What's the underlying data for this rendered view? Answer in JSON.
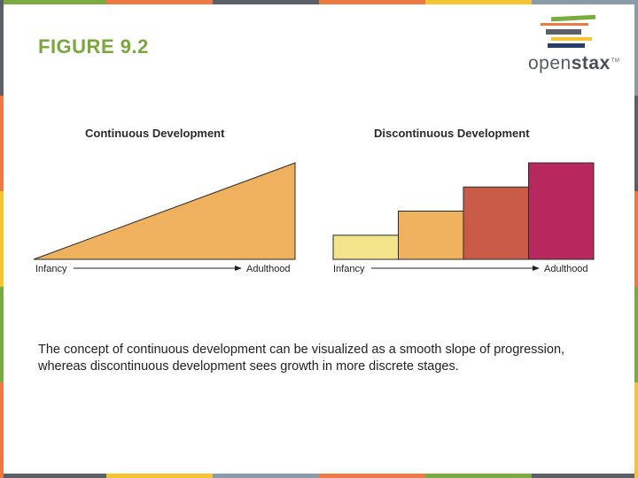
{
  "figure_title": "FIGURE 9.2",
  "logo": {
    "word_light": "open",
    "word_bold": "stax",
    "tm": "TM"
  },
  "continuous": {
    "title": "Continuous Development",
    "x_start_label": "Infancy",
    "x_end_label": "Adulthood",
    "fill_color": "#f0b15e"
  },
  "discontinuous": {
    "title": "Discontinuous Development",
    "x_start_label": "Infancy",
    "x_end_label": "Adulthood",
    "stage_levels": [
      1,
      2,
      3,
      4
    ],
    "stage_colors": [
      "#f3e38a",
      "#f0b15e",
      "#c95b48",
      "#b6285e"
    ]
  },
  "caption": "The concept of continuous development can be visualized as a smooth slope of progression, whereas discontinuous development sees growth in more discrete stages.",
  "edge_colors": [
    "#7aab3e",
    "#ee7a43",
    "#5b5f66",
    "#f5c431",
    "#8a9aa8"
  ]
}
